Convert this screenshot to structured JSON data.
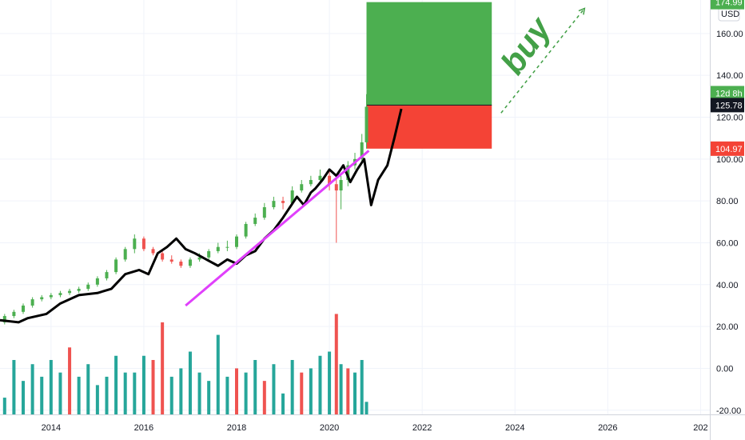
{
  "chart_data": {
    "type": "candlestick",
    "currency": "USD",
    "y_ticks": [
      "160.00",
      "140.00",
      "120.00",
      "100.00",
      "80.00",
      "60.00",
      "40.00",
      "20.00",
      "0.00",
      "-20.00"
    ],
    "x_ticks": [
      "2014",
      "2016",
      "2018",
      "2020",
      "2022",
      "2024",
      "2026",
      "202"
    ],
    "ylim": [
      -22,
      176
    ],
    "xlim": [
      2012.9,
      2028.2
    ],
    "price_tags": {
      "top": "174.99",
      "timer": "12d 8h",
      "current": "125.78",
      "stop": "104.97"
    },
    "annotation": "buy",
    "colors": {
      "up": "#26a69a",
      "down": "#ef5350",
      "candle_up": "#4caf50",
      "target_zone": "#4caf50",
      "stop_zone": "#f44336",
      "trendline": "#e040fb",
      "overlay": "#000000",
      "buy_text": "#43a047"
    },
    "position": {
      "x_start": 2020.8,
      "x_end": 2023.5,
      "entry": 125.78,
      "target": 174.99,
      "stop": 104.97
    },
    "trendline": {
      "x": [
        2016.9,
        2020.85
      ],
      "y": [
        30,
        104
      ]
    },
    "projection_arrow": {
      "x": [
        2023.7,
        2025.5
      ],
      "y": [
        122,
        172
      ]
    },
    "overlay_line": {
      "x": [
        2012.9,
        2013.3,
        2013.5,
        2013.9,
        2014.2,
        2014.6,
        2015.0,
        2015.3,
        2015.6,
        2015.9,
        2016.1,
        2016.3,
        2016.5,
        2016.7,
        2016.9,
        2017.1,
        2017.35,
        2017.6,
        2017.8,
        2018.0,
        2018.2,
        2018.4,
        2018.6,
        2018.8,
        2019.0,
        2019.15,
        2019.3,
        2019.45,
        2019.6,
        2019.7,
        2019.85,
        2020.0,
        2020.15,
        2020.3,
        2020.45,
        2020.6,
        2020.75,
        2020.9,
        2021.05,
        2021.25,
        2021.4,
        2021.55
      ],
      "y": [
        23,
        22,
        24,
        26,
        31,
        35,
        36,
        38,
        45,
        47,
        45,
        55,
        58,
        62,
        57,
        55,
        52,
        49,
        52,
        50,
        54,
        56,
        62,
        66,
        72,
        77,
        82,
        78,
        84,
        86,
        90,
        95,
        92,
        97,
        89,
        95,
        100,
        78,
        90,
        97,
        110,
        124
      ]
    },
    "candles": {
      "x": [
        2013.0,
        2013.2,
        2013.4,
        2013.6,
        2013.8,
        2014.0,
        2014.2,
        2014.4,
        2014.6,
        2014.8,
        2015.0,
        2015.2,
        2015.4,
        2015.6,
        2015.8,
        2016.0,
        2016.2,
        2016.4,
        2016.6,
        2016.8,
        2017.0,
        2017.2,
        2017.4,
        2017.6,
        2017.8,
        2018.0,
        2018.2,
        2018.4,
        2018.6,
        2018.8,
        2019.0,
        2019.2,
        2019.4,
        2019.6,
        2019.8,
        2020.0,
        2020.15,
        2020.25,
        2020.4,
        2020.55,
        2020.7,
        2020.8
      ],
      "open": [
        22,
        25,
        27,
        30,
        33,
        34,
        35,
        36,
        37,
        38,
        40,
        43,
        46,
        52,
        57,
        62,
        57,
        55,
        52,
        51,
        49,
        52,
        53,
        56,
        58,
        58,
        63,
        69,
        72,
        77,
        80,
        79,
        85,
        88,
        90,
        92,
        88,
        85,
        90,
        97,
        100,
        108
      ],
      "close": [
        25,
        27,
        30,
        33,
        34,
        35,
        36,
        37,
        38,
        40,
        43,
        46,
        52,
        57,
        62,
        57,
        55,
        52,
        51,
        49,
        52,
        53,
        56,
        58,
        58,
        63,
        69,
        72,
        77,
        80,
        79,
        85,
        88,
        90,
        92,
        88,
        85,
        90,
        97,
        100,
        108,
        125
      ],
      "high": [
        26,
        28,
        31,
        34,
        35,
        36,
        37,
        38,
        39,
        41,
        44,
        47,
        53,
        58,
        64,
        63,
        58,
        56,
        54,
        52,
        53,
        55,
        57,
        60,
        61,
        64,
        70,
        74,
        79,
        82,
        82,
        87,
        90,
        92,
        95,
        95,
        93,
        92,
        99,
        103,
        112,
        131
      ],
      "low": [
        21,
        24,
        26,
        29,
        32,
        33,
        34,
        35,
        36,
        37,
        39,
        42,
        45,
        51,
        55,
        56,
        54,
        51,
        50,
        48,
        48,
        51,
        52,
        55,
        56,
        57,
        62,
        68,
        71,
        76,
        76,
        78,
        84,
        87,
        89,
        85,
        60,
        76,
        87,
        95,
        98,
        105
      ]
    },
    "volume": {
      "x": [
        2013.0,
        2013.2,
        2013.4,
        2013.6,
        2013.8,
        2014.0,
        2014.2,
        2014.4,
        2014.6,
        2014.8,
        2015.0,
        2015.2,
        2015.4,
        2015.6,
        2015.8,
        2016.0,
        2016.2,
        2016.4,
        2016.6,
        2016.8,
        2017.0,
        2017.2,
        2017.4,
        2017.6,
        2017.8,
        2018.0,
        2018.2,
        2018.4,
        2018.6,
        2018.8,
        2019.0,
        2019.2,
        2019.4,
        2019.6,
        2019.8,
        2020.0,
        2020.15,
        2020.25,
        2020.4,
        2020.55,
        2020.7,
        2020.8
      ],
      "values": [
        -14,
        4,
        -6,
        2,
        -4,
        4,
        -2,
        10,
        -4,
        2,
        -8,
        -4,
        6,
        -2,
        -2,
        6,
        4,
        22,
        -4,
        0,
        8,
        -2,
        -6,
        16,
        -4,
        0,
        -2,
        4,
        -6,
        2,
        -12,
        4,
        -2,
        0,
        6,
        8,
        26,
        2,
        0,
        -2,
        4,
        -16
      ],
      "up": [
        true,
        true,
        true,
        true,
        true,
        true,
        true,
        false,
        true,
        true,
        true,
        true,
        true,
        true,
        true,
        true,
        false,
        false,
        true,
        true,
        true,
        true,
        true,
        true,
        true,
        false,
        true,
        true,
        false,
        true,
        true,
        true,
        false,
        true,
        true,
        true,
        false,
        true,
        false,
        true,
        true,
        true
      ]
    }
  }
}
